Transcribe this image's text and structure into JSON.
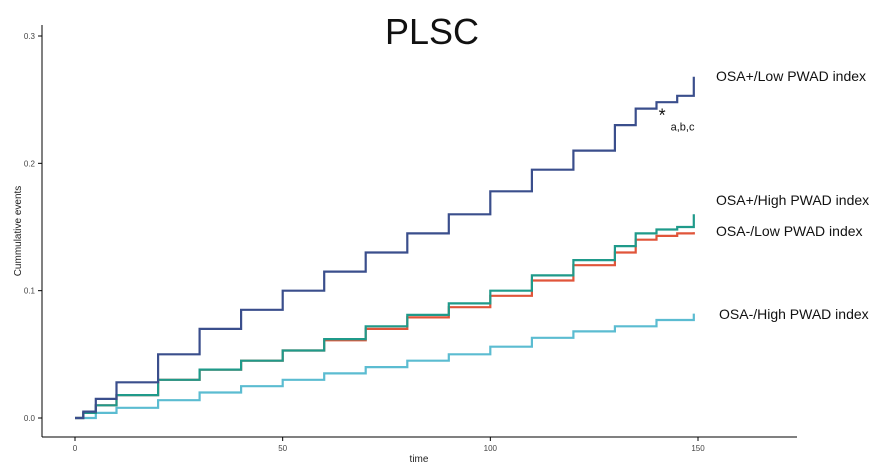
{
  "chart_data": {
    "type": "line",
    "title": "PLSC",
    "xlabel": "time",
    "ylabel": "Cummulative events",
    "xlim": [
      0,
      175
    ],
    "ylim": [
      0,
      0.31
    ],
    "xticks": [
      0,
      50,
      100,
      150
    ],
    "yticks": [
      0.0,
      0.1,
      0.2,
      0.3
    ],
    "xtick_labels": [
      "0",
      "50",
      "100",
      "150"
    ],
    "ytick_labels": [
      "0.0",
      "0.1",
      "0.2",
      "0.3"
    ],
    "grid": false,
    "legend": "inline-right",
    "annotation": {
      "symbol": "*",
      "subscript": "a,b,c",
      "x": 141,
      "y": 0.233
    },
    "series": [
      {
        "name": "OSA+/Low PWAD index",
        "color": "#3a4e8c",
        "x": [
          0,
          2,
          5,
          10,
          20,
          30,
          40,
          50,
          60,
          70,
          80,
          90,
          100,
          110,
          120,
          130,
          135,
          140,
          145,
          149,
          149
        ],
        "y": [
          0,
          0.005,
          0.015,
          0.028,
          0.05,
          0.07,
          0.085,
          0.1,
          0.115,
          0.13,
          0.145,
          0.16,
          0.178,
          0.195,
          0.21,
          0.23,
          0.243,
          0.248,
          0.253,
          0.253,
          0.268
        ]
      },
      {
        "name": "OSA+/High PWAD index",
        "color": "#1f9a8a",
        "x": [
          0,
          2,
          5,
          10,
          20,
          30,
          40,
          50,
          60,
          70,
          80,
          90,
          100,
          110,
          120,
          130,
          135,
          140,
          145,
          149,
          149
        ],
        "y": [
          0,
          0.004,
          0.01,
          0.018,
          0.03,
          0.038,
          0.045,
          0.053,
          0.062,
          0.072,
          0.081,
          0.09,
          0.1,
          0.112,
          0.124,
          0.135,
          0.145,
          0.148,
          0.15,
          0.15,
          0.16
        ]
      },
      {
        "name": "OSA-/Low PWAD index",
        "color": "#e0553a",
        "x": [
          0,
          2,
          5,
          10,
          20,
          30,
          40,
          50,
          60,
          70,
          80,
          90,
          100,
          110,
          120,
          130,
          135,
          140,
          145,
          149
        ],
        "y": [
          0,
          0.004,
          0.01,
          0.018,
          0.03,
          0.038,
          0.045,
          0.053,
          0.061,
          0.07,
          0.079,
          0.087,
          0.096,
          0.108,
          0.12,
          0.13,
          0.14,
          0.143,
          0.145,
          0.146
        ]
      },
      {
        "name": "OSA-/High PWAD index",
        "color": "#5bbcd1",
        "x": [
          0,
          5,
          10,
          20,
          30,
          40,
          50,
          60,
          70,
          80,
          90,
          100,
          110,
          120,
          130,
          140,
          145,
          149,
          149
        ],
        "y": [
          0,
          0.004,
          0.008,
          0.014,
          0.02,
          0.025,
          0.03,
          0.035,
          0.04,
          0.045,
          0.05,
          0.056,
          0.063,
          0.068,
          0.072,
          0.077,
          0.077,
          0.077,
          0.082
        ]
      }
    ]
  }
}
